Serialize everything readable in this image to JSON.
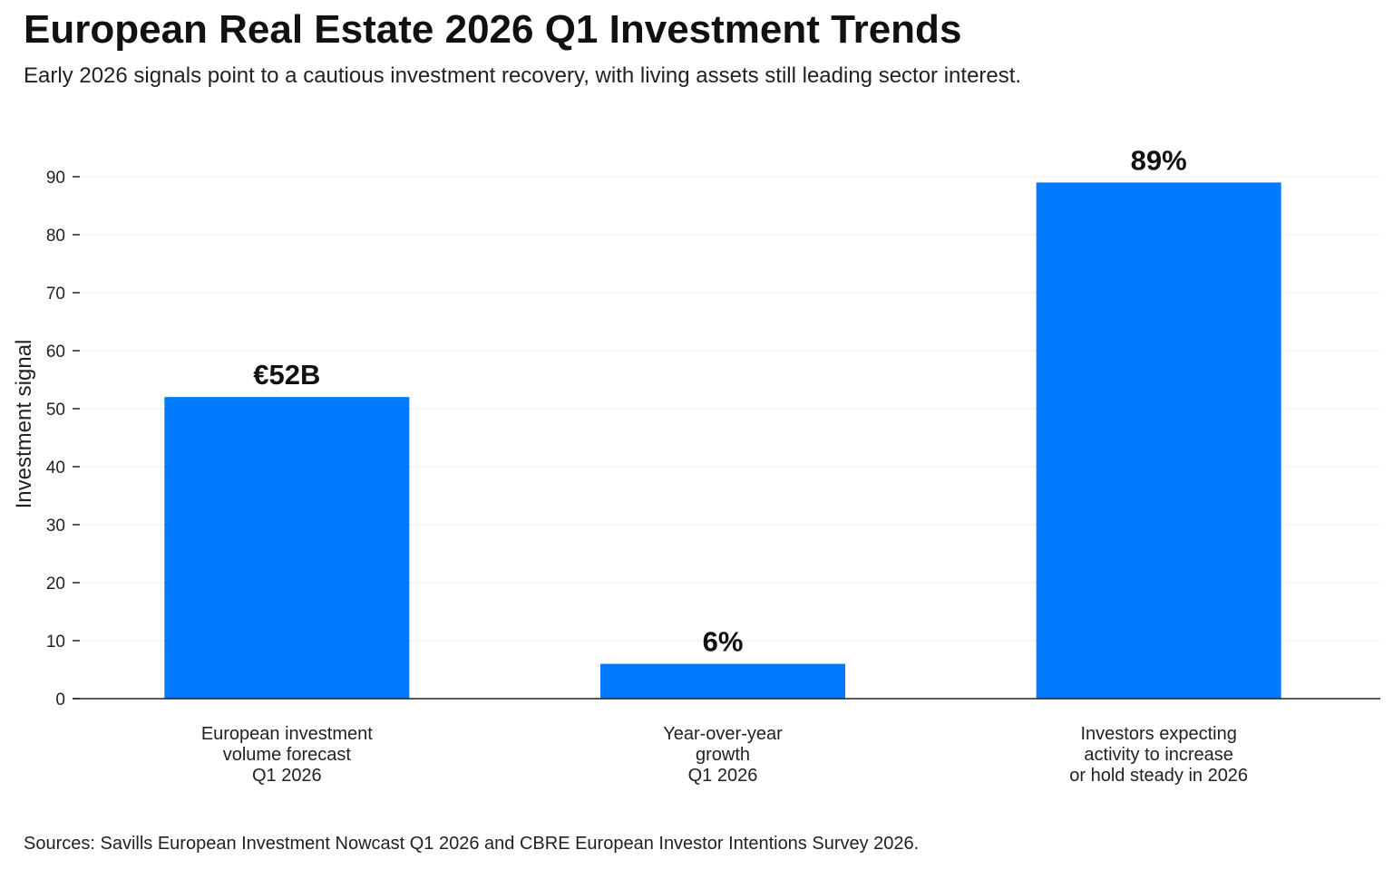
{
  "title": "European Real Estate 2026 Q1 Investment Trends",
  "subtitle": "Early 2026 signals point to a cautious investment recovery, with living assets still leading sector interest.",
  "source": "Sources: Savills European Investment Nowcast Q1 2026 and CBRE European Investor Intentions Survey 2026.",
  "chart_data": {
    "type": "bar",
    "title": "European Real Estate 2026 Q1 Investment Trends",
    "ylabel": "Investment signal",
    "xlabel": "",
    "ylim": [
      0,
      90
    ],
    "yticks": [
      0,
      10,
      20,
      30,
      40,
      50,
      60,
      70,
      80,
      90
    ],
    "grid": true,
    "bar_color": "#007bff",
    "categories": [
      [
        "European investment",
        "volume forecast",
        "Q1 2026"
      ],
      [
        "Year-over-year",
        "growth",
        "Q1 2026"
      ],
      [
        "Investors expecting",
        "activity to increase",
        "or hold steady in 2026"
      ]
    ],
    "values": [
      52,
      6,
      89
    ],
    "data_labels": [
      "€52B",
      "6%",
      "89%"
    ]
  }
}
